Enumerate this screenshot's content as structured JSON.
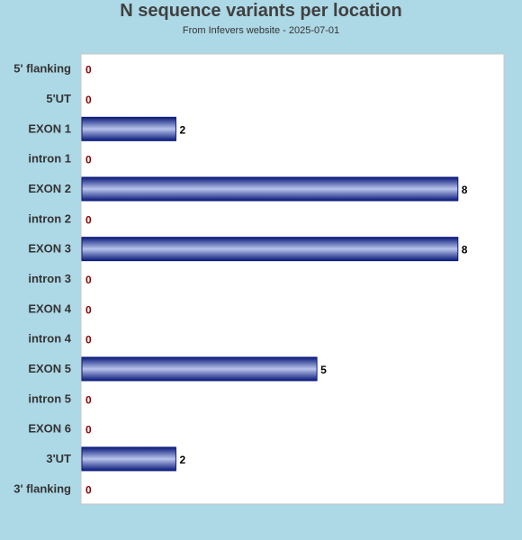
{
  "chart_data": {
    "type": "bar",
    "orientation": "horizontal",
    "title": "N sequence variants per location",
    "subtitle": "From Infevers website - 2025-07-01",
    "categories": [
      "5' flanking",
      "5'UT",
      "EXON 1",
      "intron 1",
      "EXON 2",
      "intron 2",
      "EXON 3",
      "intron 3",
      "EXON 4",
      "intron 4",
      "EXON 5",
      "intron 5",
      "EXON 6",
      "3'UT",
      "3' flanking"
    ],
    "values": [
      0,
      0,
      2,
      0,
      8,
      0,
      8,
      0,
      0,
      0,
      5,
      0,
      0,
      2,
      0
    ],
    "xlim": [
      0,
      9
    ],
    "grid": false,
    "legend": "none"
  },
  "colors": {
    "background": "#add8e6",
    "plot_area": "#ffffff",
    "bar_dark": "#0a1a7a",
    "bar_light": "#b8c4ec",
    "zero_label": "#8b0000",
    "value_label": "#000000",
    "category_label": "#333333"
  }
}
